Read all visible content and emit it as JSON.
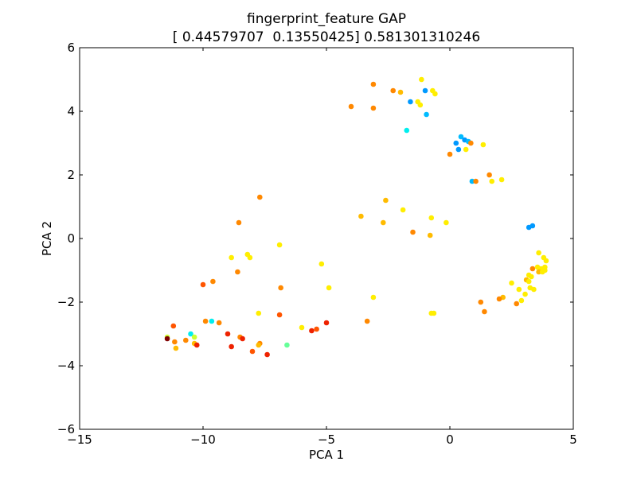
{
  "chart_data": {
    "type": "scatter",
    "title": "fingerprint_feature GAP",
    "subtitle": "[ 0.44579707  0.13550425] 0.581301310246",
    "xlabel": "PCA 1",
    "ylabel": "PCA 2",
    "xlim": [
      -15,
      5
    ],
    "ylim": [
      -6,
      6
    ],
    "xticks": [
      -15,
      -10,
      -5,
      0,
      5
    ],
    "yticks": [
      -6,
      -4,
      -2,
      0,
      2,
      4,
      6
    ],
    "xtick_labels": [
      "−15",
      "−10",
      "−5",
      "0",
      "5"
    ],
    "ytick_labels": [
      "−6",
      "−4",
      "−2",
      "0",
      "2",
      "4",
      "6"
    ],
    "grid": false,
    "colors": {
      "frame": "#000000",
      "background": "#ffffff",
      "dark_red": "#800000",
      "red": "#ee2200",
      "orange_red": "#ff5500",
      "orange": "#ff8800",
      "amber": "#ffbb00",
      "yellow": "#ffee00",
      "lime": "#ccff33",
      "green": "#66ff99",
      "cyan": "#00eeee",
      "light_blue": "#00bbff",
      "blue": "#0099ff"
    },
    "points": [
      {
        "x": -3.1,
        "y": 4.85,
        "color": "#ff8800"
      },
      {
        "x": -2.3,
        "y": 4.65,
        "color": "#ff8800"
      },
      {
        "x": -2.0,
        "y": 4.6,
        "color": "#ffbb00"
      },
      {
        "x": -1.15,
        "y": 5.0,
        "color": "#ffee00"
      },
      {
        "x": -1.0,
        "y": 4.65,
        "color": "#0099ff"
      },
      {
        "x": -0.7,
        "y": 4.65,
        "color": "#ffee00"
      },
      {
        "x": -0.6,
        "y": 4.55,
        "color": "#ffee00"
      },
      {
        "x": -1.6,
        "y": 4.3,
        "color": "#0099ff"
      },
      {
        "x": -1.3,
        "y": 4.3,
        "color": "#ffee00"
      },
      {
        "x": -1.2,
        "y": 4.2,
        "color": "#ffee00"
      },
      {
        "x": -4.0,
        "y": 4.15,
        "color": "#ff8800"
      },
      {
        "x": -3.1,
        "y": 4.1,
        "color": "#ff8800"
      },
      {
        "x": -0.95,
        "y": 3.9,
        "color": "#00bbff"
      },
      {
        "x": -1.75,
        "y": 3.4,
        "color": "#00eeee"
      },
      {
        "x": 0.45,
        "y": 3.2,
        "color": "#00bbff"
      },
      {
        "x": 0.25,
        "y": 3.0,
        "color": "#0099ff"
      },
      {
        "x": 0.6,
        "y": 3.1,
        "color": "#0099ff"
      },
      {
        "x": 0.75,
        "y": 3.05,
        "color": "#00bbff"
      },
      {
        "x": 0.85,
        "y": 3.0,
        "color": "#ff8800"
      },
      {
        "x": 1.35,
        "y": 2.95,
        "color": "#ffee00"
      },
      {
        "x": 0.35,
        "y": 2.8,
        "color": "#0099ff"
      },
      {
        "x": 0.65,
        "y": 2.8,
        "color": "#ffee00"
      },
      {
        "x": 0.0,
        "y": 2.65,
        "color": "#ff8800"
      },
      {
        "x": 1.6,
        "y": 2.0,
        "color": "#ff8800"
      },
      {
        "x": 2.1,
        "y": 1.85,
        "color": "#ffee00"
      },
      {
        "x": 1.7,
        "y": 1.8,
        "color": "#ffee00"
      },
      {
        "x": 0.9,
        "y": 1.8,
        "color": "#00bbff"
      },
      {
        "x": 1.05,
        "y": 1.8,
        "color": "#ff8800"
      },
      {
        "x": -7.7,
        "y": 1.3,
        "color": "#ff8800"
      },
      {
        "x": -2.6,
        "y": 1.2,
        "color": "#ffbb00"
      },
      {
        "x": -1.9,
        "y": 0.9,
        "color": "#ffee00"
      },
      {
        "x": -3.6,
        "y": 0.7,
        "color": "#ffbb00"
      },
      {
        "x": -0.75,
        "y": 0.65,
        "color": "#ffee00"
      },
      {
        "x": -8.55,
        "y": 0.5,
        "color": "#ff8800"
      },
      {
        "x": -2.7,
        "y": 0.5,
        "color": "#ffbb00"
      },
      {
        "x": -0.15,
        "y": 0.5,
        "color": "#ffee00"
      },
      {
        "x": -1.5,
        "y": 0.2,
        "color": "#ff8800"
      },
      {
        "x": -0.8,
        "y": 0.1,
        "color": "#ffbb00"
      },
      {
        "x": 3.2,
        "y": 0.35,
        "color": "#0099ff"
      },
      {
        "x": 3.35,
        "y": 0.4,
        "color": "#0099ff"
      },
      {
        "x": -6.9,
        "y": -0.2,
        "color": "#ffee00"
      },
      {
        "x": -8.2,
        "y": -0.5,
        "color": "#ffee00"
      },
      {
        "x": -8.1,
        "y": -0.6,
        "color": "#ffee00"
      },
      {
        "x": -8.85,
        "y": -0.6,
        "color": "#ffee00"
      },
      {
        "x": -5.2,
        "y": -0.8,
        "color": "#ffee00"
      },
      {
        "x": -8.6,
        "y": -1.05,
        "color": "#ff8800"
      },
      {
        "x": -9.6,
        "y": -1.35,
        "color": "#ff8800"
      },
      {
        "x": -10.0,
        "y": -1.45,
        "color": "#ff5500"
      },
      {
        "x": -6.85,
        "y": -1.55,
        "color": "#ff8800"
      },
      {
        "x": -4.9,
        "y": -1.55,
        "color": "#ffee00"
      },
      {
        "x": -3.1,
        "y": -1.85,
        "color": "#ffee00"
      },
      {
        "x": -7.75,
        "y": -2.35,
        "color": "#ffee00"
      },
      {
        "x": -6.9,
        "y": -2.4,
        "color": "#ff5500"
      },
      {
        "x": -0.75,
        "y": -2.35,
        "color": "#ffee00"
      },
      {
        "x": -0.65,
        "y": -2.35,
        "color": "#ffee00"
      },
      {
        "x": -9.9,
        "y": -2.6,
        "color": "#ff8800"
      },
      {
        "x": -9.65,
        "y": -2.6,
        "color": "#00eeee"
      },
      {
        "x": -9.35,
        "y": -2.65,
        "color": "#ff8800"
      },
      {
        "x": -3.35,
        "y": -2.6,
        "color": "#ff8800"
      },
      {
        "x": -5.0,
        "y": -2.65,
        "color": "#ee2200"
      },
      {
        "x": -11.2,
        "y": -2.75,
        "color": "#ff5500"
      },
      {
        "x": -6.0,
        "y": -2.8,
        "color": "#ffee00"
      },
      {
        "x": -5.4,
        "y": -2.85,
        "color": "#ff5500"
      },
      {
        "x": -5.6,
        "y": -2.9,
        "color": "#ee2200"
      },
      {
        "x": -9.0,
        "y": -3.0,
        "color": "#ee2200"
      },
      {
        "x": -10.5,
        "y": -3.0,
        "color": "#00eeee"
      },
      {
        "x": -10.35,
        "y": -3.1,
        "color": "#ccff33"
      },
      {
        "x": -10.7,
        "y": -3.2,
        "color": "#ff8800"
      },
      {
        "x": -11.45,
        "y": -3.1,
        "color": "#ccff33"
      },
      {
        "x": -11.45,
        "y": -3.15,
        "color": "#800000"
      },
      {
        "x": -8.5,
        "y": -3.1,
        "color": "#ff8800"
      },
      {
        "x": -8.4,
        "y": -3.15,
        "color": "#ee2200"
      },
      {
        "x": -11.15,
        "y": -3.25,
        "color": "#ff8800"
      },
      {
        "x": -10.35,
        "y": -3.3,
        "color": "#ffbb00"
      },
      {
        "x": -10.25,
        "y": -3.35,
        "color": "#ee2200"
      },
      {
        "x": -8.85,
        "y": -3.4,
        "color": "#ee2200"
      },
      {
        "x": -7.7,
        "y": -3.3,
        "color": "#ff8800"
      },
      {
        "x": -7.75,
        "y": -3.35,
        "color": "#ffbb00"
      },
      {
        "x": -6.6,
        "y": -3.35,
        "color": "#66ff99"
      },
      {
        "x": -11.1,
        "y": -3.45,
        "color": "#ffbb00"
      },
      {
        "x": -8.0,
        "y": -3.55,
        "color": "#ff5500"
      },
      {
        "x": -7.4,
        "y": -3.65,
        "color": "#ee2200"
      },
      {
        "x": 3.6,
        "y": -0.45,
        "color": "#ffee00"
      },
      {
        "x": 3.8,
        "y": -0.6,
        "color": "#ffee00"
      },
      {
        "x": 3.9,
        "y": -0.7,
        "color": "#ffee00"
      },
      {
        "x": 3.35,
        "y": -0.95,
        "color": "#ff8800"
      },
      {
        "x": 3.55,
        "y": -0.9,
        "color": "#ffee00"
      },
      {
        "x": 3.7,
        "y": -0.95,
        "color": "#ffee00"
      },
      {
        "x": 3.85,
        "y": -0.9,
        "color": "#ffee00"
      },
      {
        "x": 3.6,
        "y": -1.05,
        "color": "#ffbb00"
      },
      {
        "x": 3.75,
        "y": -1.05,
        "color": "#ffee00"
      },
      {
        "x": 3.85,
        "y": -1.0,
        "color": "#ffee00"
      },
      {
        "x": 3.2,
        "y": -1.15,
        "color": "#ffee00"
      },
      {
        "x": 3.3,
        "y": -1.2,
        "color": "#ffee00"
      },
      {
        "x": 3.1,
        "y": -1.3,
        "color": "#ffbb00"
      },
      {
        "x": 3.2,
        "y": -1.35,
        "color": "#ffee00"
      },
      {
        "x": 2.5,
        "y": -1.4,
        "color": "#ffee00"
      },
      {
        "x": 3.25,
        "y": -1.55,
        "color": "#ffee00"
      },
      {
        "x": 3.4,
        "y": -1.6,
        "color": "#ffee00"
      },
      {
        "x": 2.8,
        "y": -1.6,
        "color": "#ffee00"
      },
      {
        "x": 3.05,
        "y": -1.75,
        "color": "#ffee00"
      },
      {
        "x": 2.15,
        "y": -1.85,
        "color": "#ffbb00"
      },
      {
        "x": 2.0,
        "y": -1.9,
        "color": "#ff8800"
      },
      {
        "x": 2.9,
        "y": -1.95,
        "color": "#ffee00"
      },
      {
        "x": 1.25,
        "y": -2.0,
        "color": "#ff8800"
      },
      {
        "x": 2.7,
        "y": -2.05,
        "color": "#ff8800"
      },
      {
        "x": 1.4,
        "y": -2.3,
        "color": "#ff8800"
      }
    ]
  }
}
